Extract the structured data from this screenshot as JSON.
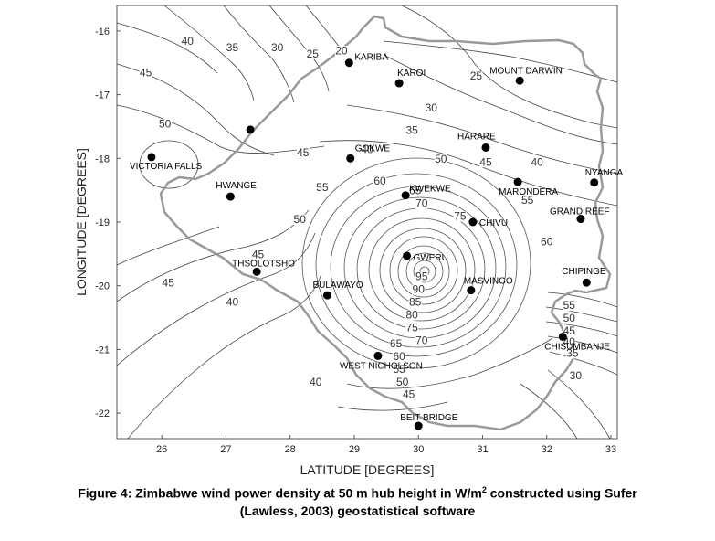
{
  "figure": {
    "xlabel": "LATITUDE [DEGREES]",
    "ylabel": "LONGITUDE [DEGREES]",
    "caption_line1_pre": "Figure 4: Zimbabwe wind power density at 50 m hub height in W/m",
    "caption_sup": "2",
    "caption_line1_post": " constructed using Sufer",
    "caption_line2": "(Lawless, 2003) geostatistical software"
  },
  "chart_data": {
    "type": "contour",
    "xlabel": "LATITUDE [DEGREES]",
    "ylabel": "LONGITUDE [DEGREES]",
    "xlim": [
      25.3,
      33.1
    ],
    "ylim": [
      -22.4,
      -15.6
    ],
    "x_ticks": [
      26,
      27,
      28,
      29,
      30,
      31,
      32,
      33
    ],
    "y_ticks": [
      -16,
      -17,
      -18,
      -19,
      -20,
      -21,
      -22
    ],
    "contour_labels": [
      {
        "text": "40",
        "x": 26.4,
        "y": -16.2
      },
      {
        "text": "35",
        "x": 27.1,
        "y": -16.3
      },
      {
        "text": "30",
        "x": 27.8,
        "y": -16.3
      },
      {
        "text": "25",
        "x": 28.35,
        "y": -16.4
      },
      {
        "text": "20",
        "x": 28.8,
        "y": -16.35
      },
      {
        "text": "45",
        "x": 25.75,
        "y": -16.7
      },
      {
        "text": "50",
        "x": 26.05,
        "y": -17.5
      },
      {
        "text": "25",
        "x": 30.9,
        "y": -16.75
      },
      {
        "text": "30",
        "x": 30.2,
        "y": -17.25
      },
      {
        "text": "35",
        "x": 29.9,
        "y": -17.6
      },
      {
        "text": "40",
        "x": 29.2,
        "y": -17.9
      },
      {
        "text": "45",
        "x": 28.2,
        "y": -17.95
      },
      {
        "text": "50",
        "x": 30.35,
        "y": -18.05
      },
      {
        "text": "45",
        "x": 31.05,
        "y": -18.1
      },
      {
        "text": "40",
        "x": 31.85,
        "y": -18.1
      },
      {
        "text": "55",
        "x": 28.5,
        "y": -18.5
      },
      {
        "text": "60",
        "x": 29.4,
        "y": -18.4
      },
      {
        "text": "65",
        "x": 29.95,
        "y": -18.55
      },
      {
        "text": "70",
        "x": 30.05,
        "y": -18.75
      },
      {
        "text": "75",
        "x": 30.65,
        "y": -18.95
      },
      {
        "text": "55",
        "x": 31.7,
        "y": -18.7
      },
      {
        "text": "60",
        "x": 32.0,
        "y": -19.35
      },
      {
        "text": "50",
        "x": 28.15,
        "y": -19.0
      },
      {
        "text": "45",
        "x": 27.5,
        "y": -19.55
      },
      {
        "text": "45",
        "x": 26.1,
        "y": -20.0
      },
      {
        "text": "40",
        "x": 27.1,
        "y": -20.3
      },
      {
        "text": "95",
        "x": 30.05,
        "y": -19.9
      },
      {
        "text": "90",
        "x": 30.0,
        "y": -20.1
      },
      {
        "text": "85",
        "x": 29.95,
        "y": -20.3
      },
      {
        "text": "80",
        "x": 29.9,
        "y": -20.5
      },
      {
        "text": "75",
        "x": 29.9,
        "y": -20.7
      },
      {
        "text": "70",
        "x": 30.05,
        "y": -20.9
      },
      {
        "text": "65",
        "x": 29.65,
        "y": -20.95
      },
      {
        "text": "60",
        "x": 29.7,
        "y": -21.15
      },
      {
        "text": "55",
        "x": 29.7,
        "y": -21.35
      },
      {
        "text": "50",
        "x": 29.75,
        "y": -21.55
      },
      {
        "text": "45",
        "x": 29.85,
        "y": -21.75
      },
      {
        "text": "40",
        "x": 28.4,
        "y": -21.55
      },
      {
        "text": "55",
        "x": 32.35,
        "y": -20.35
      },
      {
        "text": "50",
        "x": 32.35,
        "y": -20.55
      },
      {
        "text": "45",
        "x": 32.35,
        "y": -20.75
      },
      {
        "text": "40",
        "x": 32.35,
        "y": -20.92
      },
      {
        "text": "35",
        "x": 32.4,
        "y": -21.1
      },
      {
        "text": "30",
        "x": 32.45,
        "y": -21.45
      }
    ]
  },
  "cities": [
    {
      "name": "KARIBA",
      "lat": 28.92,
      "lon": -16.5,
      "dx": 6,
      "dy": -3
    },
    {
      "name": "KAROI",
      "lat": 29.7,
      "lon": -16.82,
      "dx": -2,
      "dy": -8
    },
    {
      "name": "MOUNT DARWIN",
      "lat": 31.58,
      "lon": -16.78,
      "dx": -33,
      "dy": -8
    },
    {
      "name": "",
      "lat": 27.38,
      "lon": -17.55,
      "dx": 0,
      "dy": 0
    },
    {
      "name": "HARARE",
      "lat": 31.05,
      "lon": -17.83,
      "dx": -31,
      "dy": -9
    },
    {
      "name": "GOKWE",
      "lat": 28.94,
      "lon": -18.0,
      "dx": 5,
      "dy": -8
    },
    {
      "name": "VICTORIA FALLS",
      "lat": 25.84,
      "lon": -17.98,
      "dx": -24,
      "dy": 13
    },
    {
      "name": "NYANGA",
      "lat": 32.74,
      "lon": -18.38,
      "dx": -10,
      "dy": -8
    },
    {
      "name": "MARONDERA",
      "lat": 31.55,
      "lon": -18.37,
      "dx": -21,
      "dy": 14
    },
    {
      "name": "KWEKWE",
      "lat": 29.8,
      "lon": -18.58,
      "dx": 4,
      "dy": -4
    },
    {
      "name": "HWANGE",
      "lat": 27.07,
      "lon": -18.6,
      "dx": -16,
      "dy": -9
    },
    {
      "name": "GRAND REEF",
      "lat": 32.53,
      "lon": -18.95,
      "dx": -34,
      "dy": -5
    },
    {
      "name": "CHIVU",
      "lat": 30.85,
      "lon": -19.0,
      "dx": 7,
      "dy": 4
    },
    {
      "name": "GWERU",
      "lat": 29.82,
      "lon": -19.53,
      "dx": 7,
      "dy": 5
    },
    {
      "name": "THSOLOTSHO",
      "lat": 27.48,
      "lon": -19.78,
      "dx": -27,
      "dy": -6
    },
    {
      "name": "CHIPINGE",
      "lat": 32.62,
      "lon": -19.95,
      "dx": -27,
      "dy": -9
    },
    {
      "name": "MASVINGO",
      "lat": 30.82,
      "lon": -20.07,
      "dx": -8,
      "dy": -7
    },
    {
      "name": "BULAWAYO",
      "lat": 28.58,
      "lon": -20.15,
      "dx": -16,
      "dy": -8
    },
    {
      "name": "CHISUMBANJE",
      "lat": 32.25,
      "lon": -20.8,
      "dx": -20,
      "dy": 14
    },
    {
      "name": "WEST NICHOLSON",
      "lat": 29.37,
      "lon": -21.1,
      "dx": -42,
      "dy": 14
    },
    {
      "name": "BEIT BRIDGE",
      "lat": 30.0,
      "lon": -22.2,
      "dx": -20,
      "dy": -6
    }
  ]
}
